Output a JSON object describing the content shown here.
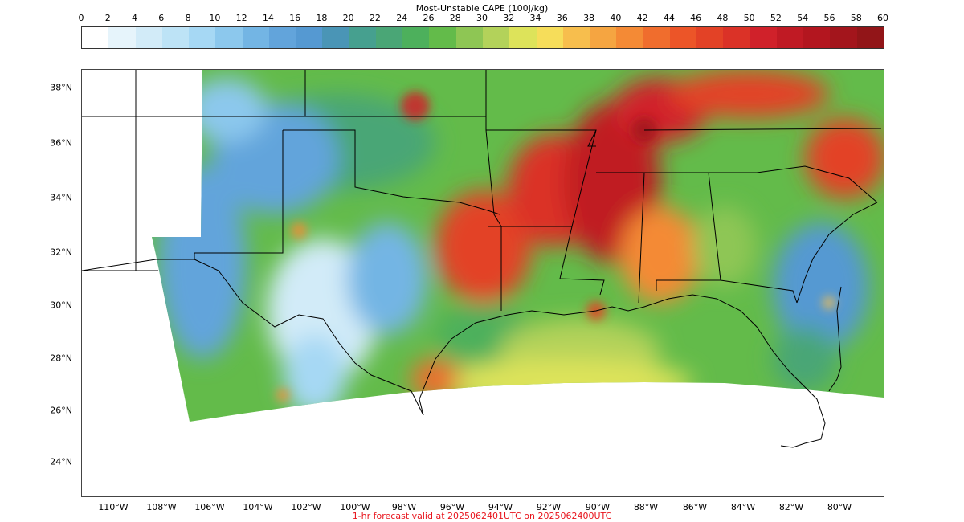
{
  "colorbar": {
    "title": "Most-Unstable CAPE (100J/kg)",
    "ticks": [
      "0",
      "2",
      "4",
      "6",
      "8",
      "10",
      "12",
      "14",
      "16",
      "18",
      "20",
      "22",
      "24",
      "26",
      "28",
      "30",
      "32",
      "34",
      "36",
      "38",
      "40",
      "42",
      "44",
      "46",
      "48",
      "50",
      "52",
      "54",
      "56",
      "58",
      "60"
    ],
    "colors": [
      "#ffffff",
      "#e6f4fb",
      "#d2ebf8",
      "#bde3f6",
      "#a6d8f4",
      "#8cc8ed",
      "#73b5e4",
      "#62a4db",
      "#5599d2",
      "#4a95b6",
      "#46a08f",
      "#4aa676",
      "#4db05c",
      "#63bb4a",
      "#8ec654",
      "#b3d25a",
      "#dde35a",
      "#f6dd5a",
      "#f7be4d",
      "#f5a541",
      "#f48a35",
      "#f06d2d",
      "#ec5528",
      "#e34226",
      "#db3227",
      "#d0212a",
      "#c01a24",
      "#b3161f",
      "#a3151c",
      "#921518"
    ]
  },
  "map": {
    "lat_labels": [
      "38°N",
      "36°N",
      "34°N",
      "32°N",
      "30°N",
      "28°N",
      "26°N",
      "24°N"
    ],
    "lon_labels": [
      "110°W",
      "108°W",
      "106°W",
      "104°W",
      "102°W",
      "100°W",
      "98°W",
      "96°W",
      "94°W",
      "92°W",
      "90°W",
      "88°W",
      "86°W",
      "84°W",
      "82°W",
      "80°W"
    ],
    "caption": "1-hr forecast valid at 2025062401UTC on 2025062400UTC",
    "caption_color": "#e8141c",
    "field_regions": [
      {
        "name": "central-plains-green",
        "color": "#4aa676"
      },
      {
        "name": "oklahoma-blue",
        "color": "#62a4db"
      },
      {
        "name": "west-texas-lightblue",
        "color": "#bde3f6"
      },
      {
        "name": "arklatex-red",
        "color": "#e34226"
      },
      {
        "name": "mississippi-darkred",
        "color": "#c01a24"
      },
      {
        "name": "alabama-orange",
        "color": "#f48a35"
      },
      {
        "name": "gulf-yellow",
        "color": "#dde35a"
      },
      {
        "name": "atlantic-blue",
        "color": "#5599d2"
      }
    ]
  }
}
